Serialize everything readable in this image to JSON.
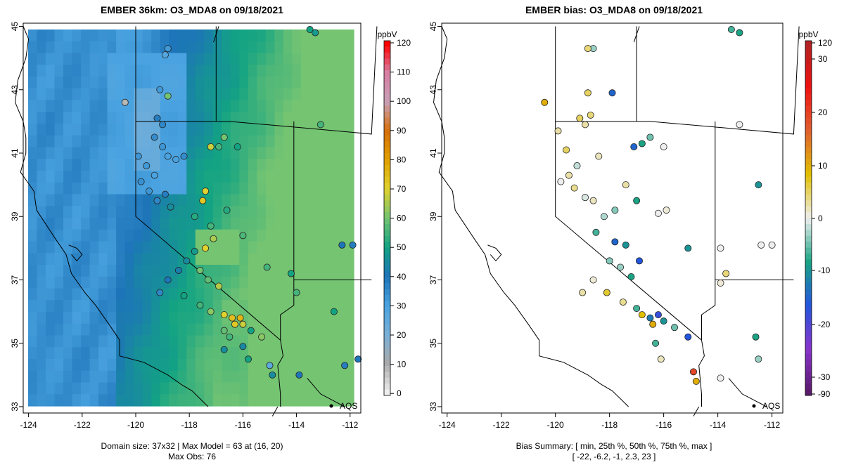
{
  "left": {
    "title": "EMBER 36km: O3_MDA8 on 09/18/2021",
    "x_ticks": [
      "-124",
      "-122",
      "-120",
      "-118",
      "-116",
      "-114",
      "-112"
    ],
    "y_ticks": [
      "33",
      "35",
      "37",
      "39",
      "41",
      "43",
      "45"
    ],
    "colorbar": {
      "unit": "ppbV",
      "labels": [
        "120",
        "110",
        "100",
        "90",
        "80",
        "70",
        "60",
        "50",
        "40",
        "30",
        "20",
        "10",
        "0"
      ],
      "colors": [
        "#ff0000",
        "#e04a5a",
        "#d77fa3",
        "#c9a0b8",
        "#d7700c",
        "#e0a800",
        "#c8d633",
        "#74c472",
        "#13a383",
        "#1d74b8",
        "#4aa3e0",
        "#bbbbbb",
        "#eeeeee"
      ]
    },
    "marker_label": "AQS",
    "footer_line1": "Domain size: 37x32 | Max Model = 63 at (16, 20)",
    "footer_line2": "Max Obs: 76"
  },
  "right": {
    "title": "EMBER bias: O3_MDA8 on 09/18/2021",
    "x_ticks": [
      "-124",
      "-122",
      "-120",
      "-118",
      "-116",
      "-114",
      "-112"
    ],
    "y_ticks": [
      "33",
      "35",
      "37",
      "39",
      "41",
      "43",
      "45"
    ],
    "colorbar": {
      "unit": "ppbV",
      "labels": [
        "120",
        "30",
        "20",
        "10",
        "0",
        "-10",
        "-20",
        "-30",
        "-90"
      ],
      "colors": [
        "#b22222",
        "#ee1111",
        "#e05060",
        "#e0a000",
        "#eeeeee",
        "#33aa66",
        "#2255dd",
        "#8833cc",
        "#5a1a6a"
      ]
    },
    "marker_label": "AQS",
    "footer_line1": "Bias Summary: [ min, 25th %, 50th %, 75th %, max ]",
    "footer_line2": "[ -22,   -6.2,   -1,   2.3,   23 ]"
  },
  "obs_ozone": [
    {
      "lon": -120.4,
      "lat": 42.6,
      "v": 8
    },
    {
      "lon": -119.2,
      "lat": 42.1,
      "v": 38
    },
    {
      "lon": -119.0,
      "lat": 41.9,
      "v": 36
    },
    {
      "lon": -118.8,
      "lat": 42.8,
      "v": 60
    },
    {
      "lon": -119.1,
      "lat": 43.0,
      "v": 32
    },
    {
      "lon": -118.9,
      "lat": 44.1,
      "v": 28
    },
    {
      "lon": -118.8,
      "lat": 44.3,
      "v": 32
    },
    {
      "lon": -119.3,
      "lat": 41.5,
      "v": 35
    },
    {
      "lon": -119.0,
      "lat": 41.2,
      "v": 33
    },
    {
      "lon": -118.8,
      "lat": 40.9,
      "v": 30
    },
    {
      "lon": -119.6,
      "lat": 40.6,
      "v": 32
    },
    {
      "lon": -119.3,
      "lat": 40.3,
      "v": 30
    },
    {
      "lon": -119.8,
      "lat": 40.1,
      "v": 34
    },
    {
      "lon": -119.5,
      "lat": 39.8,
      "v": 33
    },
    {
      "lon": -119.2,
      "lat": 39.5,
      "v": 36
    },
    {
      "lon": -118.9,
      "lat": 39.7,
      "v": 38
    },
    {
      "lon": -118.7,
      "lat": 39.3,
      "v": 45
    },
    {
      "lon": -117.4,
      "lat": 39.8,
      "v": 70
    },
    {
      "lon": -117.5,
      "lat": 39.5,
      "v": 72
    },
    {
      "lon": -117.8,
      "lat": 39.0,
      "v": 52
    },
    {
      "lon": -117.2,
      "lat": 38.7,
      "v": 55
    },
    {
      "lon": -116.6,
      "lat": 39.2,
      "v": 52
    },
    {
      "lon": -117.1,
      "lat": 38.3,
      "v": 65
    },
    {
      "lon": -117.4,
      "lat": 38.0,
      "v": 70
    },
    {
      "lon": -117.6,
      "lat": 37.3,
      "v": 60
    },
    {
      "lon": -117.3,
      "lat": 37.0,
      "v": 58
    },
    {
      "lon": -116.9,
      "lat": 36.8,
      "v": 66
    },
    {
      "lon": -117.8,
      "lat": 37.9,
      "v": 48
    },
    {
      "lon": -118.1,
      "lat": 37.6,
      "v": 45
    },
    {
      "lon": -118.4,
      "lat": 37.3,
      "v": 42
    },
    {
      "lon": -118.8,
      "lat": 37.0,
      "v": 40
    },
    {
      "lon": -119.1,
      "lat": 36.6,
      "v": 36
    },
    {
      "lon": -118.2,
      "lat": 36.5,
      "v": 50
    },
    {
      "lon": -117.6,
      "lat": 36.2,
      "v": 55
    },
    {
      "lon": -117.2,
      "lat": 36.0,
      "v": 62
    },
    {
      "lon": -116.7,
      "lat": 35.9,
      "v": 70
    },
    {
      "lon": -116.4,
      "lat": 35.8,
      "v": 74
    },
    {
      "lon": -116.1,
      "lat": 35.8,
      "v": 76
    },
    {
      "lon": -116.3,
      "lat": 35.6,
      "v": 72
    },
    {
      "lon": -116.0,
      "lat": 35.6,
      "v": 68
    },
    {
      "lon": -115.7,
      "lat": 35.4,
      "v": 50
    },
    {
      "lon": -115.3,
      "lat": 35.2,
      "v": 62
    },
    {
      "lon": -116.7,
      "lat": 35.4,
      "v": 58
    },
    {
      "lon": -116.0,
      "lat": 34.9,
      "v": 44
    },
    {
      "lon": -116.7,
      "lat": 34.8,
      "v": 45
    },
    {
      "lon": -115.8,
      "lat": 34.5,
      "v": 50
    },
    {
      "lon": -115.0,
      "lat": 34.3,
      "v": 26
    },
    {
      "lon": -114.9,
      "lat": 34.0,
      "v": 45
    },
    {
      "lon": -113.9,
      "lat": 34.0,
      "v": 40
    },
    {
      "lon": -114.0,
      "lat": 36.6,
      "v": 55
    },
    {
      "lon": -114.2,
      "lat": 37.2,
      "v": 50
    },
    {
      "lon": -112.6,
      "lat": 36.0,
      "v": 50
    },
    {
      "lon": -113.1,
      "lat": 41.9,
      "v": 55
    },
    {
      "lon": -113.5,
      "lat": 44.9,
      "v": 50
    },
    {
      "lon": -113.3,
      "lat": 44.8,
      "v": 48
    },
    {
      "lon": -111.9,
      "lat": 38.1,
      "v": 38
    },
    {
      "lon": -112.3,
      "lat": 38.1,
      "v": 40
    },
    {
      "lon": -112.2,
      "lat": 34.3,
      "v": 38
    },
    {
      "lon": -111.7,
      "lat": 34.5,
      "v": 40
    },
    {
      "lon": -117.2,
      "lat": 41.2,
      "v": 68
    },
    {
      "lon": -116.9,
      "lat": 41.2,
      "v": 55
    },
    {
      "lon": -116.7,
      "lat": 41.5,
      "v": 60
    },
    {
      "lon": -116.2,
      "lat": 41.2,
      "v": 50
    },
    {
      "lon": -118.2,
      "lat": 40.9,
      "v": 35
    },
    {
      "lon": -118.5,
      "lat": 40.8,
      "v": 30
    },
    {
      "lon": -119.9,
      "lat": 40.9,
      "v": 33
    },
    {
      "lon": -116.0,
      "lat": 38.4,
      "v": 56
    },
    {
      "lon": -115.1,
      "lat": 37.4,
      "v": 55
    },
    {
      "lon": -116.5,
      "lat": 35.2,
      "v": 55
    }
  ],
  "obs_bias": [
    {
      "lon": -120.4,
      "lat": 42.6,
      "v": 12
    },
    {
      "lon": -119.1,
      "lat": 42.1,
      "v": 6
    },
    {
      "lon": -118.9,
      "lat": 41.9,
      "v": 3
    },
    {
      "lon": -118.7,
      "lat": 42.2,
      "v": 5
    },
    {
      "lon": -118.8,
      "lat": 42.9,
      "v": 6
    },
    {
      "lon": -118.6,
      "lat": 44.3,
      "v": -4
    },
    {
      "lon": -118.8,
      "lat": 44.3,
      "v": 5
    },
    {
      "lon": -117.9,
      "lat": 42.9,
      "v": -18
    },
    {
      "lon": -119.9,
      "lat": 41.7,
      "v": 3
    },
    {
      "lon": -119.6,
      "lat": 41.1,
      "v": 6
    },
    {
      "lon": -119.2,
      "lat": 40.6,
      "v": -2
    },
    {
      "lon": -119.5,
      "lat": 40.3,
      "v": 3
    },
    {
      "lon": -119.8,
      "lat": 40.1,
      "v": 0
    },
    {
      "lon": -119.3,
      "lat": 39.9,
      "v": 4
    },
    {
      "lon": -118.9,
      "lat": 39.6,
      "v": -1
    },
    {
      "lon": -118.6,
      "lat": 39.5,
      "v": 2
    },
    {
      "lon": -118.2,
      "lat": 39.0,
      "v": -3
    },
    {
      "lon": -118.5,
      "lat": 38.5,
      "v": -8
    },
    {
      "lon": -117.8,
      "lat": 38.2,
      "v": -18
    },
    {
      "lon": -117.4,
      "lat": 38.1,
      "v": -12
    },
    {
      "lon": -117.0,
      "lat": 39.5,
      "v": -10
    },
    {
      "lon": -117.4,
      "lat": 40.0,
      "v": 3
    },
    {
      "lon": -117.8,
      "lat": 39.2,
      "v": -5
    },
    {
      "lon": -116.2,
      "lat": 39.1,
      "v": 0
    },
    {
      "lon": -117.1,
      "lat": 41.2,
      "v": -18
    },
    {
      "lon": -116.8,
      "lat": 41.3,
      "v": -10
    },
    {
      "lon": -116.5,
      "lat": 41.5,
      "v": -6
    },
    {
      "lon": -116.0,
      "lat": 41.2,
      "v": 0
    },
    {
      "lon": -118.0,
      "lat": 37.6,
      "v": -5
    },
    {
      "lon": -117.6,
      "lat": 37.4,
      "v": -4
    },
    {
      "lon": -117.2,
      "lat": 37.1,
      "v": -10
    },
    {
      "lon": -116.9,
      "lat": 37.6,
      "v": -20
    },
    {
      "lon": -118.6,
      "lat": 37.0,
      "v": 1
    },
    {
      "lon": -119.0,
      "lat": 36.6,
      "v": 3
    },
    {
      "lon": -118.1,
      "lat": 36.6,
      "v": 8
    },
    {
      "lon": -117.5,
      "lat": 36.3,
      "v": 4
    },
    {
      "lon": -117.0,
      "lat": 36.1,
      "v": -8
    },
    {
      "lon": -116.8,
      "lat": 35.9,
      "v": 10
    },
    {
      "lon": -116.5,
      "lat": 35.8,
      "v": -15
    },
    {
      "lon": -116.2,
      "lat": 35.9,
      "v": -22
    },
    {
      "lon": -116.4,
      "lat": 35.6,
      "v": 12
    },
    {
      "lon": -116.0,
      "lat": 35.7,
      "v": -12
    },
    {
      "lon": -115.6,
      "lat": 35.5,
      "v": -6
    },
    {
      "lon": -115.1,
      "lat": 35.2,
      "v": -20
    },
    {
      "lon": -116.3,
      "lat": 35.0,
      "v": -8
    },
    {
      "lon": -116.1,
      "lat": 34.5,
      "v": 2
    },
    {
      "lon": -114.9,
      "lat": 34.1,
      "v": 23
    },
    {
      "lon": -114.8,
      "lat": 33.8,
      "v": 12
    },
    {
      "lon": -113.9,
      "lat": 33.9,
      "v": 0
    },
    {
      "lon": -113.7,
      "lat": 37.2,
      "v": 5
    },
    {
      "lon": -113.9,
      "lat": 36.9,
      "v": 1
    },
    {
      "lon": -112.6,
      "lat": 35.2,
      "v": -10
    },
    {
      "lon": -113.2,
      "lat": 41.9,
      "v": 0
    },
    {
      "lon": -113.5,
      "lat": 44.9,
      "v": -8
    },
    {
      "lon": -113.2,
      "lat": 44.8,
      "v": -10
    },
    {
      "lon": -112.0,
      "lat": 38.1,
      "v": 0
    },
    {
      "lon": -112.4,
      "lat": 38.1,
      "v": 0
    },
    {
      "lon": -112.5,
      "lat": 40.0,
      "v": -12
    },
    {
      "lon": -112.5,
      "lat": 34.5,
      "v": -4
    },
    {
      "lon": -118.4,
      "lat": 40.9,
      "v": 2
    },
    {
      "lon": -115.1,
      "lat": 38.0,
      "v": -12
    },
    {
      "lon": -115.9,
      "lat": 39.2,
      "v": 1
    },
    {
      "lon": -113.9,
      "lat": 38.0,
      "v": 0
    }
  ]
}
